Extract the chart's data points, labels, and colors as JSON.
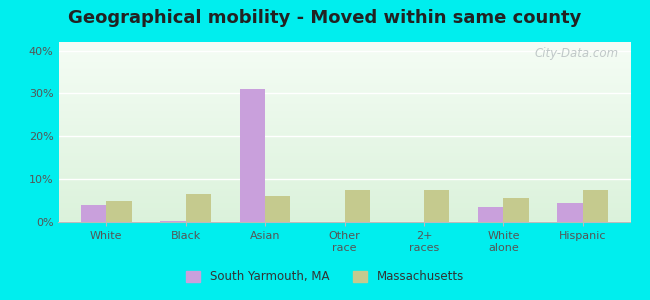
{
  "title": "Geographical mobility - Moved within same county",
  "categories": [
    "White",
    "Black",
    "Asian",
    "Other\nrace",
    "2+\nraces",
    "White\nalone",
    "Hispanic"
  ],
  "south_yarmouth": [
    4.0,
    0.3,
    31.0,
    0.0,
    0.0,
    3.5,
    4.5
  ],
  "massachusetts": [
    5.0,
    6.5,
    6.0,
    7.5,
    7.5,
    5.5,
    7.5
  ],
  "sy_color": "#c9a0dc",
  "ma_color": "#c5ca8e",
  "sy_label": "South Yarmouth, MA",
  "ma_label": "Massachusetts",
  "ylim": [
    0,
    42
  ],
  "yticks": [
    0,
    10,
    20,
    30,
    40
  ],
  "yticklabels": [
    "0%",
    "10%",
    "20%",
    "30%",
    "40%"
  ],
  "outer_bg": "#00eeee",
  "watermark": "City-Data.com",
  "bar_width": 0.32,
  "title_fontsize": 13,
  "tick_fontsize": 8
}
